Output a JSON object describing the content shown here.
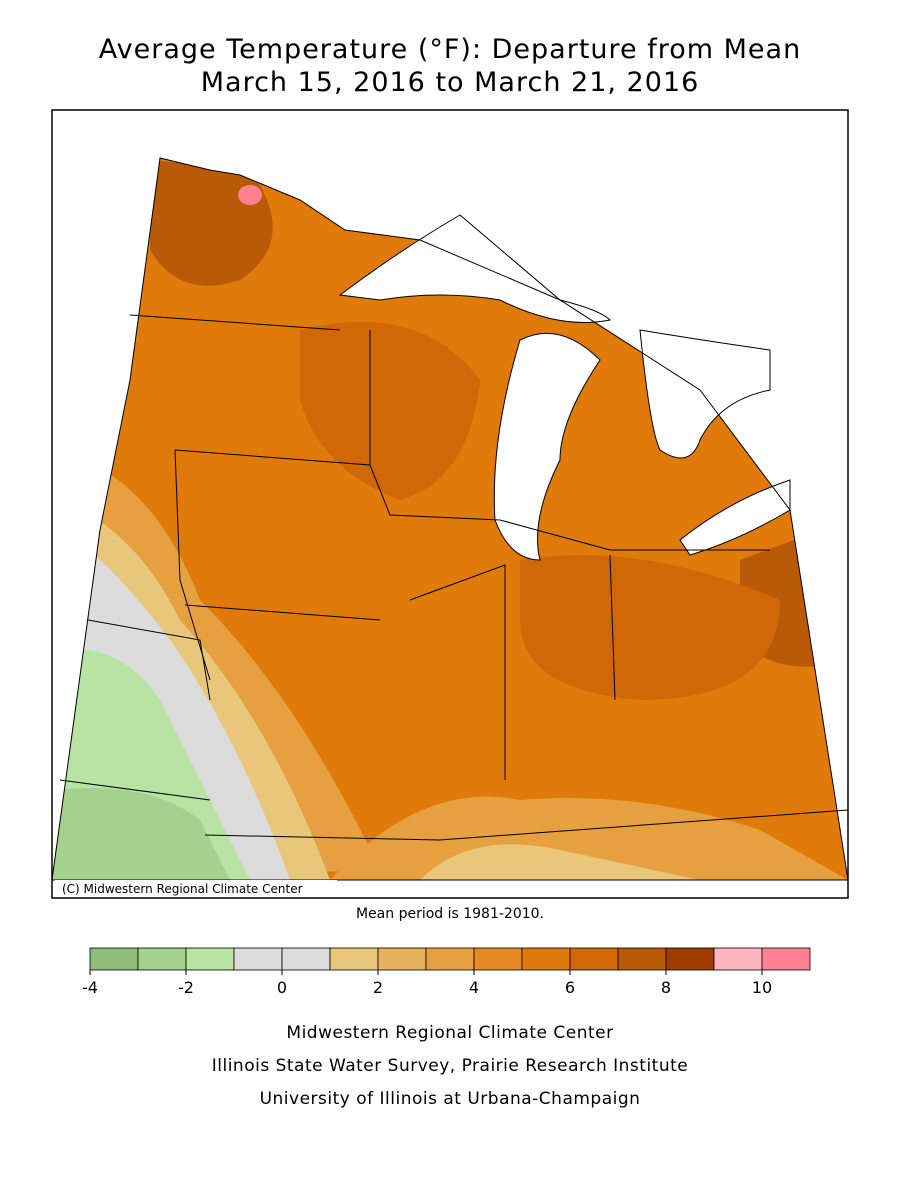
{
  "header": {
    "title": "Average Temperature (°F): Departure from Mean",
    "subtitle": "March 15, 2016 to March 21, 2016"
  },
  "map": {
    "copyright": "(C) Midwestern Regional Climate Center",
    "note": "Mean period is 1981-2010."
  },
  "legend": {
    "bins": [
      -4,
      -3,
      -2,
      -1,
      0,
      1,
      2,
      3,
      4,
      5,
      6,
      7,
      8,
      9,
      10,
      11
    ],
    "colors": [
      "#8fbc78",
      "#a5d18e",
      "#b8e3a3",
      "#dcdcdc",
      "#dcdcdc",
      "#e8c77a",
      "#e6b35c",
      "#e6a040",
      "#e68a26",
      "#e07a0a",
      "#d06808",
      "#b85a08",
      "#a03c00",
      "#ffb6c1",
      "#ff8090"
    ],
    "ticks": [
      -4,
      -2,
      0,
      2,
      4,
      6,
      8,
      10
    ]
  },
  "footer": {
    "lines": [
      "Midwestern Regional Climate Center",
      "Illinois State Water Survey, Prairie Research Institute",
      "University of Illinois at Urbana-Champaign"
    ]
  }
}
